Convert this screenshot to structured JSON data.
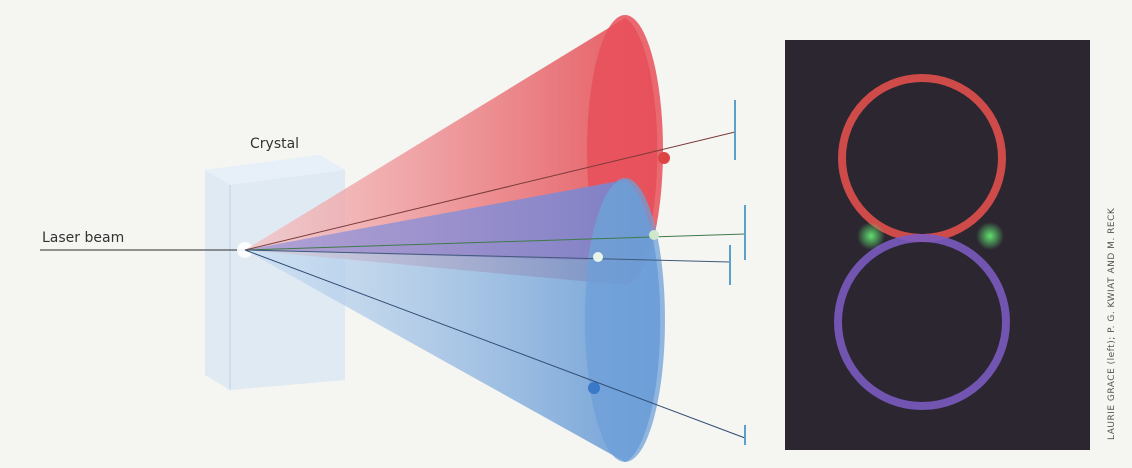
{
  "labels": {
    "crystal": "Crystal",
    "laser_beam": "Laser beam"
  },
  "credit": "LAURIE GRACE (left); P. G. KWIAT AND M. RECK"
}
